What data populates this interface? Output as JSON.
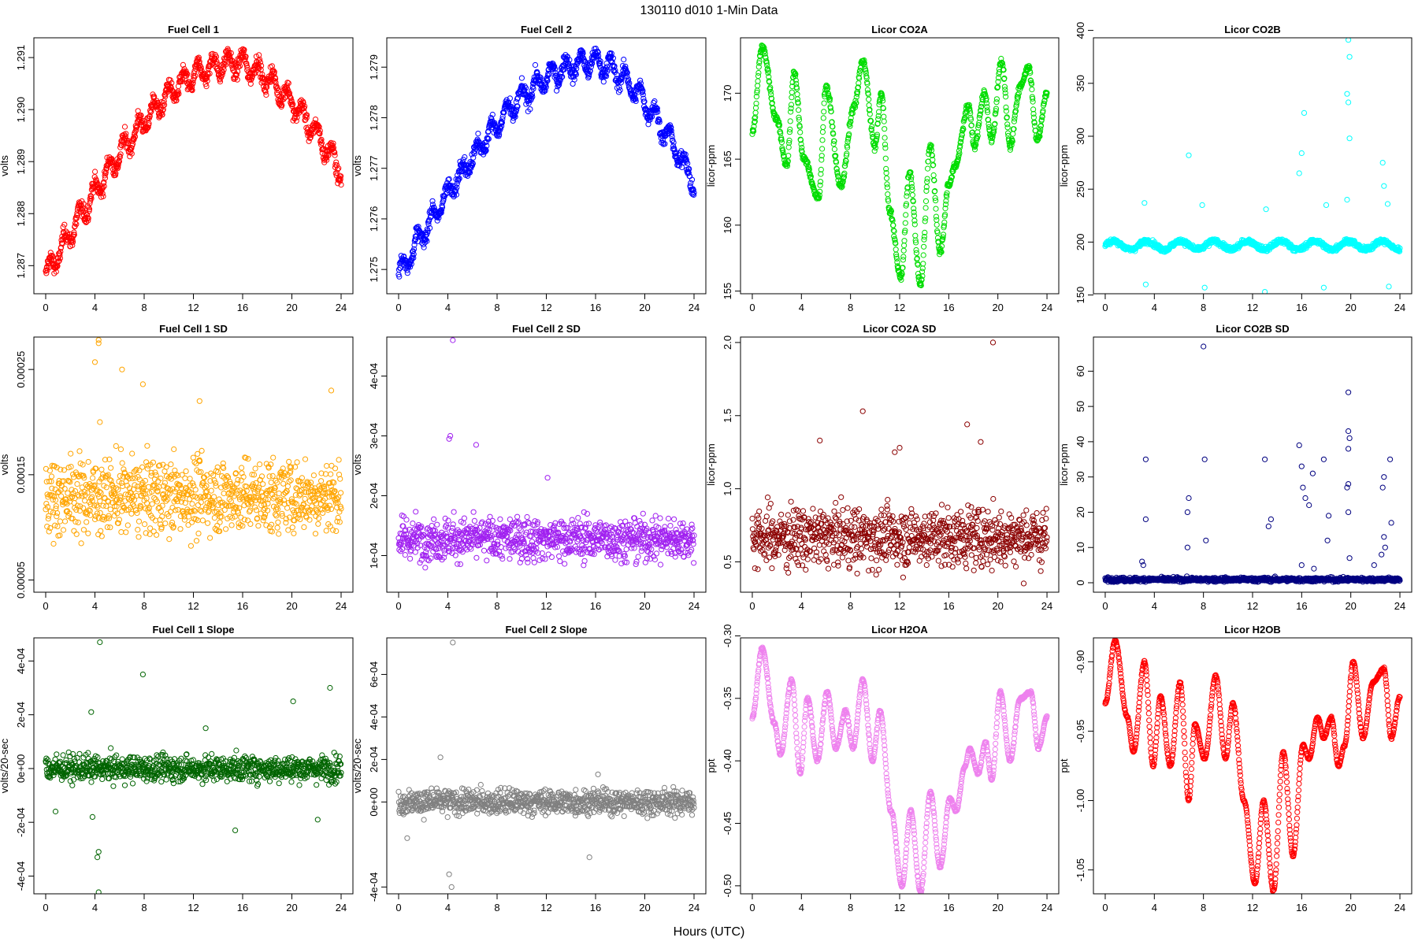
{
  "figure": {
    "title": "130110    d010    1-Min Data",
    "xlabel": "Hours (UTC)"
  },
  "chart_data": [
    {
      "type": "scatter",
      "title": "Fuel Cell 1",
      "ylabel": "volts",
      "color": "#ff0000",
      "xlim": [
        -0.96,
        24.96
      ],
      "ylim": [
        1.28646,
        1.29138
      ],
      "x_ticks": [
        0,
        4,
        8,
        12,
        16,
        20,
        24
      ],
      "y_ticks": [
        "1.287",
        "1.288",
        "1.289",
        "1.290",
        "1.291"
      ],
      "y_tick_values": [
        1.287,
        1.288,
        1.289,
        1.29,
        1.291
      ],
      "shape": "trend",
      "y_start": 1.2868,
      "y_peak": 1.2909,
      "y_peak_x": 15.5,
      "y_end": 1.2888,
      "noise": 0.00025,
      "outliers": []
    },
    {
      "type": "scatter",
      "title": "Fuel Cell 2",
      "ylabel": "volts",
      "color": "#0000ff",
      "xlim": [
        -0.96,
        24.96
      ],
      "ylim": [
        1.27452,
        1.27958
      ],
      "x_ticks": [
        0,
        4,
        8,
        12,
        16,
        20,
        24
      ],
      "y_ticks": [
        "1.275",
        "1.276",
        "1.277",
        "1.278",
        "1.279"
      ],
      "y_tick_values": [
        1.275,
        1.276,
        1.277,
        1.278,
        1.279
      ],
      "shape": "trend",
      "y_start": 1.2749,
      "y_peak": 1.2791,
      "y_peak_x": 16.0,
      "y_end": 1.2767,
      "noise": 0.00025,
      "outliers": []
    },
    {
      "type": "scatter",
      "title": "Licor CO2A",
      "ylabel": "licor-ppm",
      "color": "#00dd00",
      "xlim": [
        -0.96,
        24.96
      ],
      "ylim": [
        154.8,
        174.2
      ],
      "x_ticks": [
        0,
        4,
        8,
        12,
        16,
        20,
        24
      ],
      "y_ticks": [
        "155",
        "160",
        "165",
        "170"
      ],
      "y_tick_values": [
        155,
        160,
        165,
        170
      ],
      "shape": "wave",
      "keypoints": [
        [
          0,
          167
        ],
        [
          0.8,
          173.5
        ],
        [
          2,
          168
        ],
        [
          2.8,
          164.5
        ],
        [
          3.4,
          171.5
        ],
        [
          4.2,
          165
        ],
        [
          5.4,
          162
        ],
        [
          6,
          170.5
        ],
        [
          7.2,
          163
        ],
        [
          8.3,
          169
        ],
        [
          9,
          172.5
        ],
        [
          10,
          166
        ],
        [
          10.5,
          170
        ],
        [
          11.2,
          161
        ],
        [
          12.1,
          156
        ],
        [
          12.8,
          164
        ],
        [
          13.7,
          155.5
        ],
        [
          14.5,
          166
        ],
        [
          15.3,
          158
        ],
        [
          16,
          163
        ],
        [
          16.5,
          164.5
        ],
        [
          17.6,
          169
        ],
        [
          18.1,
          166
        ],
        [
          18.9,
          170
        ],
        [
          19.5,
          166.5
        ],
        [
          20.3,
          172.5
        ],
        [
          21,
          166
        ],
        [
          21.8,
          170.5
        ],
        [
          22.5,
          172
        ],
        [
          23.2,
          166.5
        ],
        [
          24,
          170
        ]
      ],
      "noise": 0.5,
      "outliers": []
    },
    {
      "type": "scatter",
      "title": "Licor CO2B",
      "ylabel": "licor-ppm",
      "color": "#00ffff",
      "xlim": [
        -0.96,
        24.96
      ],
      "ylim": [
        151.2,
        393
      ],
      "x_ticks": [
        0,
        4,
        8,
        12,
        16,
        20,
        24
      ],
      "y_ticks": [
        "150",
        "200",
        "250",
        "300",
        "350",
        "400"
      ],
      "y_tick_values": [
        150,
        200,
        250,
        300,
        350,
        400
      ],
      "shape": "baseline",
      "base": 197,
      "amp": 4,
      "noise": 2,
      "outliers": [
        [
          3.2,
          237
        ],
        [
          3.3,
          160
        ],
        [
          6.8,
          282
        ],
        [
          7.9,
          235
        ],
        [
          8.1,
          157
        ],
        [
          13,
          153
        ],
        [
          13.1,
          231
        ],
        [
          15.8,
          265
        ],
        [
          16,
          284
        ],
        [
          16.2,
          322
        ],
        [
          17.8,
          157
        ],
        [
          18,
          235
        ],
        [
          19.8,
          391
        ],
        [
          19.9,
          375
        ],
        [
          19.7,
          340
        ],
        [
          19.8,
          332
        ],
        [
          19.9,
          298
        ],
        [
          19.7,
          240
        ],
        [
          22.6,
          275
        ],
        [
          22.7,
          253
        ],
        [
          23,
          236
        ],
        [
          23.1,
          158
        ]
      ]
    },
    {
      "type": "scatter",
      "title": "Fuel Cell 1 SD",
      "ylabel": "volts",
      "color": "#ffa500",
      "xlim": [
        -0.96,
        24.96
      ],
      "ylim": [
        3.84e-05,
        0.0002808
      ],
      "x_ticks": [
        0,
        4,
        8,
        12,
        16,
        20,
        24
      ],
      "y_ticks": [
        "0.00005",
        "0.00015",
        "0.00025"
      ],
      "y_tick_values": [
        5e-05,
        0.00015,
        0.00025
      ],
      "shape": "flat",
      "base": 0.00013,
      "noise": 3e-05,
      "outliers": [
        [
          4.3,
          0.000278
        ],
        [
          4.3,
          0.000275
        ],
        [
          4,
          0.000257
        ],
        [
          6.2,
          0.00025
        ],
        [
          7.9,
          0.000236
        ],
        [
          12.5,
          0.00022
        ],
        [
          23.2,
          0.00023
        ],
        [
          4.4,
          0.0002
        ]
      ]
    },
    {
      "type": "scatter",
      "title": "Fuel Cell 2 SD",
      "ylabel": "volts",
      "color": "#a020f0",
      "xlim": [
        -0.96,
        24.96
      ],
      "ylim": [
        3.88e-05,
        0.0004652
      ],
      "x_ticks": [
        0,
        4,
        8,
        12,
        16,
        20,
        24
      ],
      "y_ticks": [
        "1e-04",
        "2e-04",
        "3e-04",
        "4e-04"
      ],
      "y_tick_values": [
        0.0001,
        0.0002,
        0.0003,
        0.0004
      ],
      "shape": "flat",
      "base": 0.000128,
      "noise": 3e-05,
      "outliers": [
        [
          4.4,
          0.00046
        ],
        [
          4.2,
          0.0003
        ],
        [
          4.1,
          0.000295
        ],
        [
          6.3,
          0.000285
        ],
        [
          12.1,
          0.00023
        ]
      ]
    },
    {
      "type": "scatter",
      "title": "Licor CO2A SD",
      "ylabel": "licor-ppm",
      "color": "#8b0000",
      "xlim": [
        -0.96,
        24.96
      ],
      "ylim": [
        0.2928,
        2.0372
      ],
      "x_ticks": [
        0,
        4,
        8,
        12,
        16,
        20,
        24
      ],
      "y_ticks": [
        "0.5",
        "1.0",
        "1.5",
        "2.0"
      ],
      "y_tick_values": [
        0.5,
        1.0,
        1.5,
        2.0
      ],
      "shape": "flat",
      "base": 0.67,
      "noise": 0.17,
      "outliers": [
        [
          19.6,
          2.0
        ],
        [
          9,
          1.53
        ],
        [
          17.5,
          1.44
        ],
        [
          18.6,
          1.32
        ],
        [
          12,
          1.28
        ],
        [
          5.5,
          1.33
        ],
        [
          11.6,
          1.25
        ]
      ]
    },
    {
      "type": "scatter",
      "title": "Licor CO2B SD",
      "ylabel": "licor-ppm",
      "color": "#000080",
      "xlim": [
        -0.96,
        24.96
      ],
      "ylim": [
        -2.68,
        69.68
      ],
      "x_ticks": [
        0,
        4,
        8,
        12,
        16,
        20,
        24
      ],
      "y_ticks": [
        "0",
        "10",
        "20",
        "30",
        "40",
        "50",
        "60"
      ],
      "y_tick_values": [
        0,
        10,
        20,
        30,
        40,
        50,
        60
      ],
      "shape": "flat",
      "base": 0.9,
      "noise": 0.5,
      "outliers": [
        [
          8,
          67
        ],
        [
          19.8,
          54
        ],
        [
          19.8,
          43
        ],
        [
          19.9,
          41
        ],
        [
          19.8,
          38
        ],
        [
          3.3,
          35
        ],
        [
          8.1,
          35
        ],
        [
          13,
          35
        ],
        [
          16,
          33
        ],
        [
          16.9,
          31
        ],
        [
          17.8,
          35
        ],
        [
          22.7,
          30
        ],
        [
          23.2,
          35
        ],
        [
          19.8,
          28
        ],
        [
          19.7,
          27
        ],
        [
          15.8,
          39
        ],
        [
          16.1,
          27
        ],
        [
          16.3,
          24
        ],
        [
          6.8,
          24
        ],
        [
          6.7,
          20
        ],
        [
          3.3,
          18
        ],
        [
          16.6,
          22
        ],
        [
          18.2,
          19
        ],
        [
          19.8,
          20
        ],
        [
          22.6,
          27
        ],
        [
          22.7,
          13
        ],
        [
          22.8,
          10
        ],
        [
          13.5,
          18
        ],
        [
          13.3,
          16
        ],
        [
          3,
          6
        ],
        [
          3.1,
          5
        ],
        [
          6.7,
          10
        ],
        [
          8.2,
          12
        ],
        [
          19.9,
          7
        ],
        [
          16,
          5
        ],
        [
          17,
          4
        ],
        [
          18.1,
          12
        ],
        [
          21.9,
          5
        ],
        [
          22.5,
          8
        ],
        [
          23.3,
          17
        ]
      ]
    },
    {
      "type": "scatter",
      "title": "Fuel Cell 1 Slope",
      "ylabel": "volts/20-sec",
      "color": "#006400",
      "xlim": [
        -0.96,
        24.96
      ],
      "ylim": [
        -0.000466,
        0.000486
      ],
      "x_ticks": [
        0,
        4,
        8,
        12,
        16,
        20,
        24
      ],
      "y_ticks": [
        "-4e-04",
        "-2e-04",
        "0e+00",
        "2e-04",
        "4e-04"
      ],
      "y_tick_values": [
        -0.0004,
        -0.0002,
        0,
        0.0002,
        0.0004
      ],
      "shape": "flat",
      "base": 0,
      "noise": 4e-05,
      "outliers": [
        [
          4.4,
          0.00047
        ],
        [
          3.7,
          0.00021
        ],
        [
          7.9,
          0.00035
        ],
        [
          23.1,
          0.0003
        ],
        [
          20.1,
          0.00025
        ],
        [
          4.3,
          -0.00031
        ],
        [
          4.2,
          -0.00033
        ],
        [
          4.3,
          -0.00046
        ],
        [
          3.8,
          -0.00018
        ],
        [
          15.4,
          -0.00023
        ],
        [
          13,
          0.00015
        ],
        [
          22.1,
          -0.00019
        ],
        [
          0.8,
          -0.00016
        ]
      ]
    },
    {
      "type": "scatter",
      "title": "Fuel Cell 2 Slope",
      "ylabel": "volts/20-sec",
      "color": "#808080",
      "xlim": [
        -0.96,
        24.96
      ],
      "ylim": [
        -0.000432,
        0.000772
      ],
      "x_ticks": [
        0,
        4,
        8,
        12,
        16,
        20,
        24
      ],
      "y_ticks": [
        "-4e-04",
        "0e+00",
        "2e-04",
        "4e-04",
        "6e-04"
      ],
      "y_tick_values": [
        -0.0004,
        0,
        0.0002,
        0.0004,
        0.0006
      ],
      "shape": "flat",
      "base": 0,
      "noise": 5e-05,
      "outliers": [
        [
          4.4,
          0.00075
        ],
        [
          4.3,
          -0.0004
        ],
        [
          4.1,
          -0.00034
        ],
        [
          3.4,
          0.00021
        ],
        [
          15.5,
          -0.00026
        ],
        [
          0.7,
          -0.00017
        ],
        [
          16.2,
          0.00013
        ]
      ]
    },
    {
      "type": "scatter",
      "title": "Licor H2OA",
      "ylabel": "ppt",
      "color": "#ee82ee",
      "xlim": [
        -0.96,
        24.96
      ],
      "ylim": [
        -0.5064,
        -0.3016
      ],
      "x_ticks": [
        0,
        4,
        8,
        12,
        16,
        20,
        24
      ],
      "y_ticks": [
        "-0.50",
        "-0.45",
        "-0.40",
        "-0.35",
        "-0.30"
      ],
      "y_tick_values": [
        -0.5,
        -0.45,
        -0.4,
        -0.35,
        -0.3
      ],
      "shape": "wave",
      "keypoints": [
        [
          0,
          -0.365
        ],
        [
          0.8,
          -0.31
        ],
        [
          1.8,
          -0.37
        ],
        [
          2.3,
          -0.395
        ],
        [
          3.2,
          -0.335
        ],
        [
          3.9,
          -0.41
        ],
        [
          4.5,
          -0.35
        ],
        [
          5.3,
          -0.4
        ],
        [
          6.1,
          -0.345
        ],
        [
          6.8,
          -0.39
        ],
        [
          7.6,
          -0.36
        ],
        [
          8.2,
          -0.39
        ],
        [
          9,
          -0.335
        ],
        [
          9.8,
          -0.4
        ],
        [
          10.4,
          -0.36
        ],
        [
          11.3,
          -0.44
        ],
        [
          12.2,
          -0.5
        ],
        [
          12.9,
          -0.44
        ],
        [
          13.7,
          -0.505
        ],
        [
          14.5,
          -0.425
        ],
        [
          15.3,
          -0.485
        ],
        [
          16.1,
          -0.43
        ],
        [
          16.6,
          -0.44
        ],
        [
          17.3,
          -0.405
        ],
        [
          17.7,
          -0.39
        ],
        [
          18.4,
          -0.41
        ],
        [
          19,
          -0.385
        ],
        [
          19.5,
          -0.415
        ],
        [
          20.2,
          -0.345
        ],
        [
          21,
          -0.4
        ],
        [
          21.8,
          -0.35
        ],
        [
          22.7,
          -0.345
        ],
        [
          23.3,
          -0.39
        ],
        [
          24,
          -0.365
        ]
      ],
      "noise": 0.002,
      "outliers": []
    },
    {
      "type": "scatter",
      "title": "Licor H2OB",
      "ylabel": "ppt",
      "color": "#ff0000",
      "xlim": [
        -0.96,
        24.96
      ],
      "ylim": [
        -1.0672,
        -0.8828
      ],
      "x_ticks": [
        0,
        4,
        8,
        12,
        16,
        20,
        24
      ],
      "y_ticks": [
        "-1.05",
        "-1.00",
        "-0.95",
        "-0.90"
      ],
      "y_tick_values": [
        -1.05,
        -1.0,
        -0.95,
        -0.9
      ],
      "shape": "wave",
      "keypoints": [
        [
          0,
          -0.93
        ],
        [
          0.8,
          -0.885
        ],
        [
          1.8,
          -0.94
        ],
        [
          2.3,
          -0.965
        ],
        [
          3.2,
          -0.9
        ],
        [
          3.9,
          -0.975
        ],
        [
          4.5,
          -0.925
        ],
        [
          5.3,
          -0.975
        ],
        [
          6.1,
          -0.915
        ],
        [
          6.8,
          -1.0
        ],
        [
          7.3,
          -0.945
        ],
        [
          8.1,
          -0.97
        ],
        [
          9,
          -0.91
        ],
        [
          9.8,
          -0.97
        ],
        [
          10.4,
          -0.93
        ],
        [
          11.3,
          -1.0
        ],
        [
          12.2,
          -1.06
        ],
        [
          12.9,
          -1.0
        ],
        [
          13.7,
          -1.065
        ],
        [
          14.5,
          -0.965
        ],
        [
          15.3,
          -1.04
        ],
        [
          16.1,
          -0.96
        ],
        [
          16.6,
          -0.97
        ],
        [
          17.3,
          -0.94
        ],
        [
          17.8,
          -0.955
        ],
        [
          18.4,
          -0.94
        ],
        [
          19,
          -0.975
        ],
        [
          19.5,
          -0.96
        ],
        [
          20.2,
          -0.9
        ],
        [
          21,
          -0.955
        ],
        [
          21.8,
          -0.915
        ],
        [
          22.7,
          -0.905
        ],
        [
          23.3,
          -0.955
        ],
        [
          24,
          -0.925
        ]
      ],
      "noise": 0.0015,
      "outliers": []
    }
  ]
}
